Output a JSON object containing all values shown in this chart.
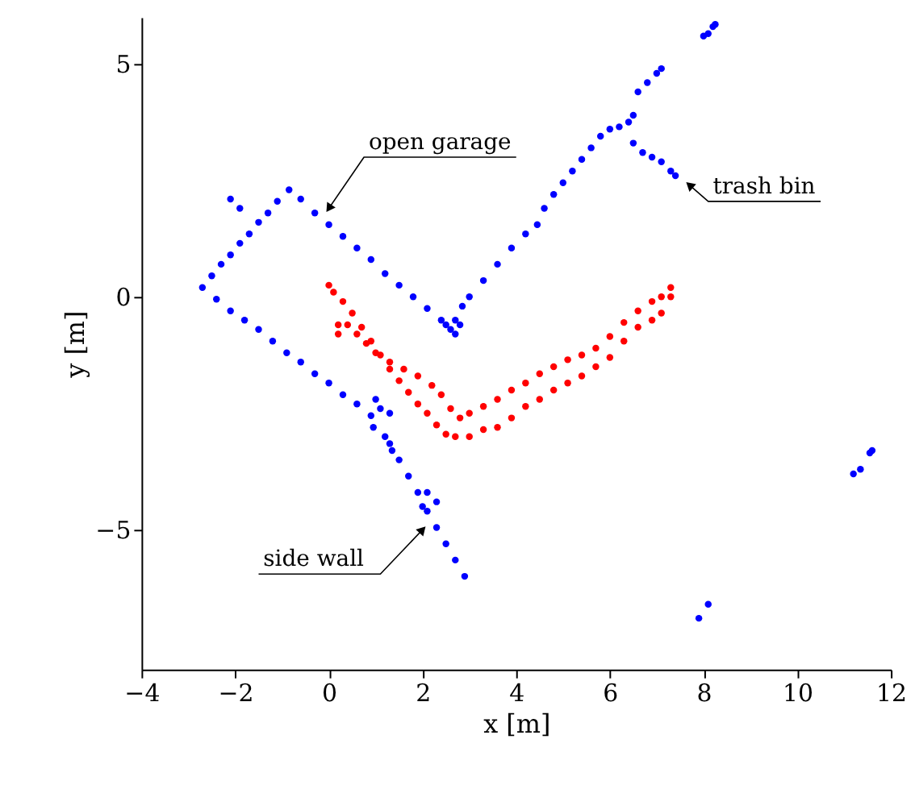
{
  "chart_data": {
    "type": "scatter",
    "xlabel": "x [m]",
    "ylabel": "y [m]",
    "xlim": [
      -4,
      12
    ],
    "ylim": [
      -8,
      6
    ],
    "xticks": [
      {
        "value": -4,
        "label": "−4"
      },
      {
        "value": -2,
        "label": "−2"
      },
      0,
      2,
      4,
      6,
      8,
      10,
      12
    ],
    "yticks": [
      {
        "value": -5,
        "label": "−5"
      },
      0,
      5
    ],
    "grid": false,
    "series": [
      {
        "color": "#0000ff",
        "x": [
          -2.7,
          -2.5,
          -2.3,
          -2.1,
          -1.9,
          -1.7,
          -1.5,
          -1.3,
          -1.1,
          -0.85,
          -0.6,
          -0.3,
          0,
          0.3,
          0.6,
          0.9,
          1.2,
          1.5,
          1.8,
          2.1,
          2.4,
          2.6,
          -2.4,
          -2.1,
          -1.8,
          -1.5,
          -1.2,
          -0.9,
          -0.6,
          -0.3,
          0,
          0.3,
          0.6,
          0.9,
          1.0,
          1.1,
          0.95,
          1.2,
          1.3,
          1.35,
          1.3,
          1.5,
          1.7,
          1.9,
          2.1,
          2.3,
          2.5,
          2.7,
          2.9,
          2.1,
          2.3,
          2.0,
          2.7,
          2.85,
          3.0,
          3.3,
          3.6,
          3.9,
          4.2,
          4.45,
          4.6,
          4.8,
          5.0,
          5.2,
          5.4,
          5.6,
          5.8,
          6.0,
          6.2,
          6.4,
          6.5,
          2.5,
          2.7,
          2.8,
          6.5,
          6.7,
          6.9,
          7.1,
          7.3,
          7.4,
          6.6,
          6.8,
          7.0,
          7.1,
          8.0,
          8.1,
          8.2,
          8.25,
          -1.9,
          -2.1,
          7.9,
          8.1,
          11.2,
          11.35,
          11.55,
          11.6
        ],
        "values": [
          0.2,
          0.45,
          0.7,
          0.9,
          1.15,
          1.35,
          1.6,
          1.8,
          2.05,
          2.3,
          2.1,
          1.8,
          1.55,
          1.3,
          1.05,
          0.8,
          0.5,
          0.25,
          0,
          -0.25,
          -0.5,
          -0.7,
          -0.05,
          -0.3,
          -0.5,
          -0.7,
          -0.95,
          -1.2,
          -1.4,
          -1.65,
          -1.85,
          -2.1,
          -2.3,
          -2.55,
          -2.2,
          -2.4,
          -2.8,
          -3.0,
          -2.5,
          -3.3,
          -3.15,
          -3.5,
          -3.85,
          -4.2,
          -4.6,
          -4.95,
          -5.3,
          -5.65,
          -6.0,
          -4.2,
          -4.4,
          -4.5,
          -0.5,
          -0.2,
          0,
          0.35,
          0.7,
          1.05,
          1.35,
          1.55,
          1.9,
          2.2,
          2.45,
          2.7,
          2.95,
          3.2,
          3.45,
          3.6,
          3.65,
          3.75,
          3.9,
          -0.6,
          -0.8,
          -0.6,
          3.3,
          3.1,
          3.0,
          2.9,
          2.7,
          2.6,
          4.4,
          4.6,
          4.8,
          4.9,
          5.6,
          5.65,
          5.8,
          5.85,
          1.9,
          2.1,
          -6.9,
          -6.6,
          -3.8,
          -3.7,
          -3.35,
          -3.3
        ]
      },
      {
        "color": "#ff0000",
        "x": [
          0.2,
          0.2,
          0.4,
          0.6,
          0.8,
          1.0,
          1.3,
          1.6,
          1.9,
          2.2,
          2.4,
          2.6,
          2.8,
          3.0,
          3.3,
          3.6,
          3.9,
          4.2,
          4.5,
          4.8,
          5.1,
          5.4,
          5.7,
          6.0,
          6.3,
          6.6,
          6.9,
          7.1,
          7.3,
          0,
          0.1,
          0.3,
          0.5,
          0.7,
          0.9,
          1.1,
          1.3,
          1.5,
          1.7,
          1.9,
          2.1,
          2.3,
          2.5,
          2.7,
          3.0,
          3.3,
          3.6,
          3.9,
          4.2,
          4.5,
          4.8,
          5.1,
          5.4,
          5.7,
          6.0,
          6.3,
          6.6,
          6.9,
          7.1,
          7.3
        ],
        "values": [
          -0.8,
          -0.6,
          -0.6,
          -0.8,
          -1.0,
          -1.2,
          -1.4,
          -1.55,
          -1.7,
          -1.9,
          -2.1,
          -2.4,
          -2.6,
          -2.5,
          -2.35,
          -2.2,
          -2.0,
          -1.85,
          -1.65,
          -1.5,
          -1.35,
          -1.25,
          -1.1,
          -0.85,
          -0.55,
          -0.3,
          -0.1,
          0,
          0.2,
          0.25,
          0.1,
          -0.1,
          -0.35,
          -0.65,
          -0.95,
          -1.25,
          -1.55,
          -1.8,
          -2.05,
          -2.3,
          -2.5,
          -2.75,
          -2.95,
          -3.0,
          -3.0,
          -2.85,
          -2.8,
          -2.6,
          -2.35,
          -2.2,
          -2.0,
          -1.85,
          -1.7,
          -1.5,
          -1.3,
          -0.95,
          -0.65,
          -0.5,
          -0.35,
          0
        ]
      }
    ],
    "annotations": [
      {
        "text": "open garage",
        "x": 0,
        "y": 1.9
      },
      {
        "text": "trash bin",
        "x": 7.7,
        "y": 2.4
      },
      {
        "text": "side wall",
        "x": 2.0,
        "y": -5.0
      }
    ]
  }
}
